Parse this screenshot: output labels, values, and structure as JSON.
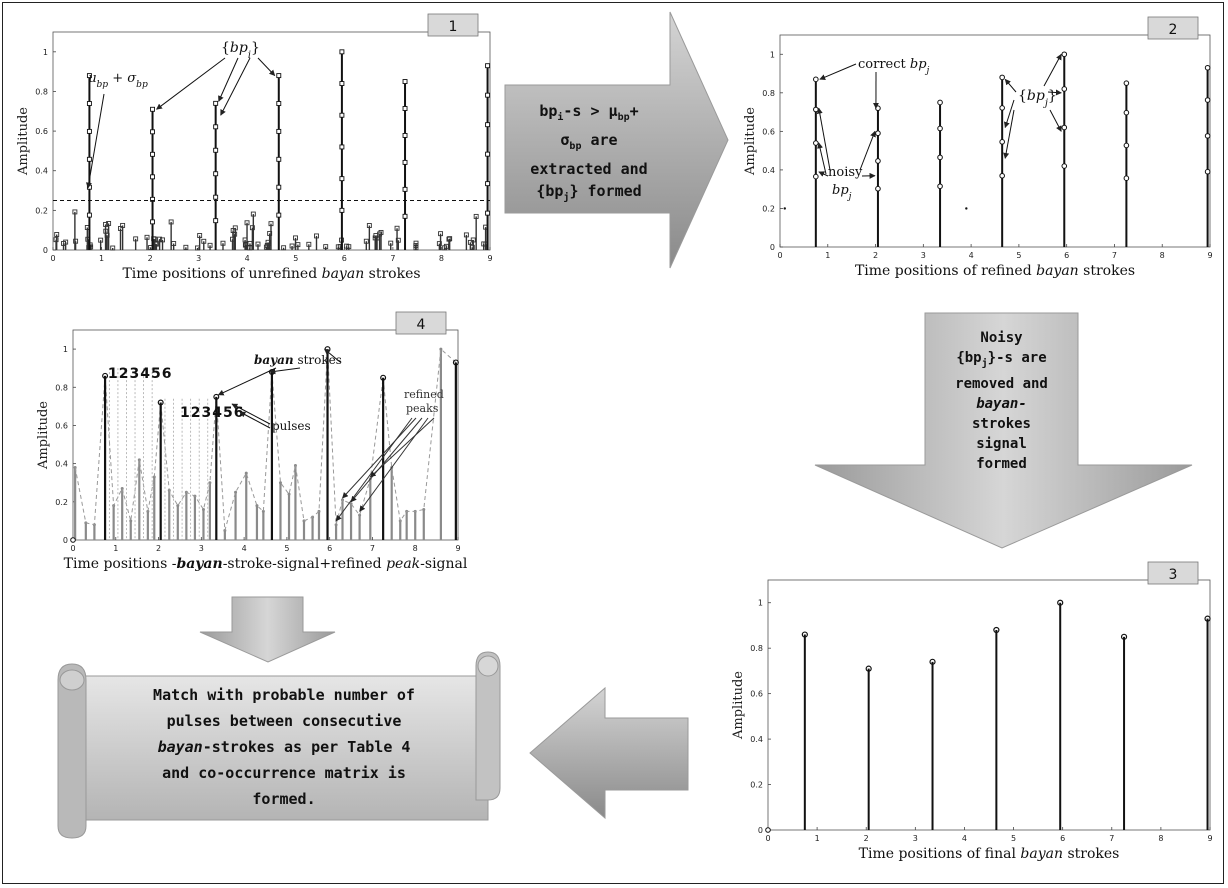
{
  "panels": {
    "p1": {
      "number": "1",
      "ylabel": "Amplitude",
      "xlabel_pre": "Time positions of unrefined ",
      "xlabel_em": "bayan",
      "xlabel_post": " strokes",
      "xticks": [
        "0",
        "1",
        "2",
        "3",
        "4",
        "5",
        "6",
        "7",
        "8",
        "9"
      ],
      "yticks": [
        "0",
        "0.2",
        "0.4",
        "0.6",
        "0.8",
        "1"
      ],
      "annot_mu": "μbp + σbp",
      "annot_bpi": "{bpi}",
      "threshold": 0.25,
      "strokes": [
        {
          "x": 0.75,
          "y": 0.88
        },
        {
          "x": 2.05,
          "y": 0.71
        },
        {
          "x": 3.35,
          "y": 0.74
        },
        {
          "x": 4.65,
          "y": 0.88
        },
        {
          "x": 5.95,
          "y": 1.0
        },
        {
          "x": 7.25,
          "y": 0.85
        },
        {
          "x": 8.95,
          "y": 0.93
        }
      ]
    },
    "p2": {
      "number": "2",
      "ylabel": "Amplitude",
      "xlabel_pre": "Time positions of refined ",
      "xlabel_em": "bayan",
      "xlabel_post": " strokes",
      "xticks": [
        "0",
        "1",
        "2",
        "3",
        "4",
        "5",
        "6",
        "7",
        "8",
        "9"
      ],
      "yticks": [
        "0",
        "0.2",
        "0.4",
        "0.6",
        "0.8",
        "1"
      ],
      "annot_correct": "correct bpj",
      "annot_noisy": "noisy",
      "annot_noisy_sub": "bpj",
      "annot_bpj": "{bpj}",
      "strokes": [
        {
          "x": 0.75,
          "y": 0.87
        },
        {
          "x": 2.05,
          "y": 0.72
        },
        {
          "x": 3.35,
          "y": 0.75
        },
        {
          "x": 4.65,
          "y": 0.88
        },
        {
          "x": 5.95,
          "y": 1.0
        },
        {
          "x": 7.25,
          "y": 0.85
        },
        {
          "x": 8.95,
          "y": 0.93
        }
      ]
    },
    "p3": {
      "number": "3",
      "ylabel": "Amplitude",
      "xlabel_pre": "Time positions of final ",
      "xlabel_em": "bayan",
      "xlabel_post": " strokes",
      "xticks": [
        "0",
        "1",
        "2",
        "3",
        "4",
        "5",
        "6",
        "7",
        "8",
        "9"
      ],
      "yticks": [
        "0",
        "0.2",
        "0.4",
        "0.6",
        "0.8",
        "1"
      ],
      "strokes": [
        {
          "x": 0.75,
          "y": 0.86
        },
        {
          "x": 2.05,
          "y": 0.71
        },
        {
          "x": 3.35,
          "y": 0.74
        },
        {
          "x": 4.65,
          "y": 0.88
        },
        {
          "x": 5.95,
          "y": 1.0
        },
        {
          "x": 7.25,
          "y": 0.85
        },
        {
          "x": 8.95,
          "y": 0.93
        }
      ]
    },
    "p4": {
      "number": "4",
      "ylabel": "Amplitude",
      "xlabel_pre": "Time positions -",
      "xlabel_em": "bayan",
      "xlabel_mid": "-stroke-signal+refined ",
      "xlabel_em2": "peak",
      "xlabel_post": "-signal",
      "xticks": [
        "0",
        "1",
        "2",
        "3",
        "4",
        "5",
        "6",
        "7",
        "8",
        "9"
      ],
      "yticks": [
        "0",
        "0.2",
        "0.4",
        "0.6",
        "0.8",
        "1"
      ],
      "annot_strokes_em": "bayan",
      "annot_strokes": " strokes",
      "annot_pulses": "pulses",
      "annot_refined": "refined",
      "annot_peaks": "peaks",
      "pulse_numbers_a": "123456",
      "pulse_numbers_b": "123456",
      "strokes": [
        {
          "x": 0.75,
          "y": 0.86
        },
        {
          "x": 2.05,
          "y": 0.72
        },
        {
          "x": 3.35,
          "y": 0.75
        },
        {
          "x": 4.65,
          "y": 0.88
        },
        {
          "x": 5.95,
          "y": 1.0
        },
        {
          "x": 7.25,
          "y": 0.85
        },
        {
          "x": 8.95,
          "y": 0.93
        }
      ],
      "peaks": [
        {
          "x": 0.05,
          "y": 0.38
        },
        {
          "x": 0.3,
          "y": 0.09
        },
        {
          "x": 0.5,
          "y": 0.08
        },
        {
          "x": 0.95,
          "y": 0.18
        },
        {
          "x": 1.15,
          "y": 0.27
        },
        {
          "x": 1.35,
          "y": 0.1
        },
        {
          "x": 1.55,
          "y": 0.42
        },
        {
          "x": 1.75,
          "y": 0.15
        },
        {
          "x": 1.9,
          "y": 0.33
        },
        {
          "x": 2.25,
          "y": 0.26
        },
        {
          "x": 2.45,
          "y": 0.18
        },
        {
          "x": 2.65,
          "y": 0.25
        },
        {
          "x": 2.85,
          "y": 0.23
        },
        {
          "x": 3.05,
          "y": 0.16
        },
        {
          "x": 3.2,
          "y": 0.3
        },
        {
          "x": 3.55,
          "y": 0.05
        },
        {
          "x": 3.8,
          "y": 0.25
        },
        {
          "x": 4.05,
          "y": 0.35
        },
        {
          "x": 4.3,
          "y": 0.18
        },
        {
          "x": 4.45,
          "y": 0.15
        },
        {
          "x": 4.85,
          "y": 0.3
        },
        {
          "x": 5.05,
          "y": 0.24
        },
        {
          "x": 5.2,
          "y": 0.39
        },
        {
          "x": 5.4,
          "y": 0.1
        },
        {
          "x": 5.6,
          "y": 0.12
        },
        {
          "x": 5.75,
          "y": 0.15
        },
        {
          "x": 6.15,
          "y": 0.08
        },
        {
          "x": 6.3,
          "y": 0.21
        },
        {
          "x": 6.5,
          "y": 0.19
        },
        {
          "x": 6.7,
          "y": 0.13
        },
        {
          "x": 6.95,
          "y": 0.32
        },
        {
          "x": 7.45,
          "y": 0.38
        },
        {
          "x": 7.65,
          "y": 0.1
        },
        {
          "x": 7.8,
          "y": 0.15
        },
        {
          "x": 8.0,
          "y": 0.15
        },
        {
          "x": 8.2,
          "y": 0.16
        },
        {
          "x": 8.6,
          "y": 1.0
        }
      ]
    }
  },
  "arrow_1_2": {
    "line1_a": "bp",
    "line1_sub": "i",
    "line1_b": "-s > μ",
    "line1_sub2": "bp",
    "line1_c": "+",
    "line2_a": "σ",
    "line2_sub": "bp",
    "line2_b": " are",
    "line3": "extracted and",
    "line4_a": "{bp",
    "line4_sub": "j",
    "line4_b": "} formed"
  },
  "arrow_2_3": {
    "line1": "Noisy",
    "line2_a": "{bp",
    "line2_sub": "j",
    "line2_b": "}-s are",
    "line3": "removed and",
    "line4": "bayan-",
    "line5": "strokes",
    "line6": "signal",
    "line7": "formed"
  },
  "scroll": {
    "line1": "Match with probable number of",
    "line2": "pulses between consecutive",
    "line3_em": "bayan",
    "line3": "-strokes as per Table 4",
    "line4": "and co-occurrence matrix is",
    "line5": "formed."
  }
}
